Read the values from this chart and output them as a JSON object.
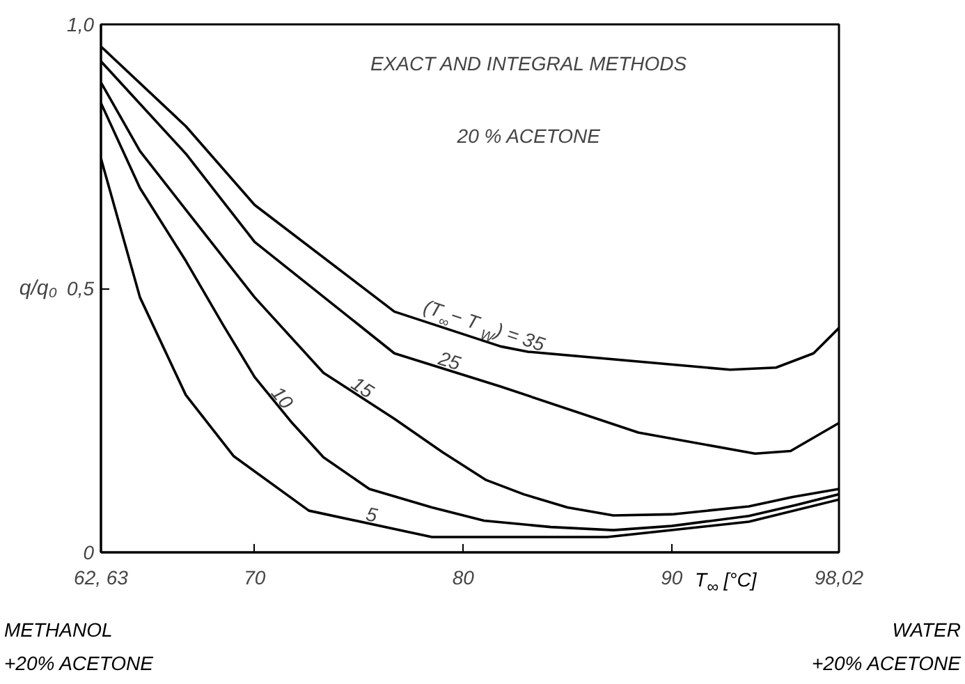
{
  "chart_data": {
    "type": "line",
    "title": "EXACT AND INTEGRAL METHODS",
    "subtitle": "20 % ACETONE",
    "ylabel": "q/q₀",
    "xlabel": "T$_{∞}$ [°C]",
    "xlim": [
      62.63,
      98.02
    ],
    "xticks": [
      {
        "value": 62.63,
        "label": "62, 63"
      },
      70,
      80,
      90,
      {
        "value": 98.02,
        "label": "98,02"
      }
    ],
    "ylim": [
      0,
      1
    ],
    "yticks": [
      0,
      {
        "value": 0.5,
        "label": "0,5"
      },
      {
        "value": 1,
        "label": "1,0"
      }
    ],
    "grid": false,
    "marker": "none",
    "line_style": "solid",
    "annotations": [
      "METHANOL\n+20% ACETONE",
      "WATER\n+20% ACETONE"
    ],
    "series": [
      {
        "name": "(T$_{∞}$ − T$_{W}$) = 35",
        "color": "#000000",
        "x": [
          62.63,
          66.7,
          70.0,
          76.7,
          81.8,
          83.1,
          92.8,
          95.0,
          96.8,
          98.02
        ],
        "values": [
          0.958,
          0.807,
          0.658,
          0.456,
          0.39,
          0.38,
          0.346,
          0.35,
          0.377,
          0.425
        ]
      },
      {
        "name": "25",
        "color": "#000000",
        "x": [
          62.63,
          66.7,
          70.0,
          76.7,
          81.8,
          88.4,
          94.0,
          95.7,
          98.02
        ],
        "values": [
          0.93,
          0.755,
          0.588,
          0.377,
          0.314,
          0.227,
          0.187,
          0.192,
          0.245
        ]
      },
      {
        "name": "15",
        "color": "#000000",
        "x": [
          62.63,
          64.5,
          66.7,
          70.0,
          73.3,
          76.7,
          79.0,
          81.1,
          82.9,
          85.0,
          87.2,
          90.0,
          93.7,
          95.8,
          98.02
        ],
        "values": [
          0.89,
          0.76,
          0.649,
          0.483,
          0.34,
          0.253,
          0.19,
          0.137,
          0.11,
          0.085,
          0.07,
          0.072,
          0.087,
          0.105,
          0.12
        ]
      },
      {
        "name": "10",
        "color": "#000000",
        "x": [
          62.63,
          64.5,
          66.7,
          68.5,
          70.0,
          71.8,
          73.3,
          75.5,
          78.5,
          81.0,
          84.2,
          87.2,
          90.0,
          93.7,
          96.0,
          98.02
        ],
        "values": [
          0.851,
          0.69,
          0.552,
          0.43,
          0.332,
          0.245,
          0.18,
          0.12,
          0.085,
          0.06,
          0.048,
          0.042,
          0.05,
          0.069,
          0.09,
          0.11
        ]
      },
      {
        "name": "5",
        "color": "#000000",
        "x": [
          62.63,
          64.5,
          66.7,
          69.0,
          72.6,
          78.5,
          86.9,
          93.7,
          98.02
        ],
        "values": [
          0.746,
          0.483,
          0.298,
          0.182,
          0.079,
          0.029,
          0.029,
          0.058,
          0.1
        ]
      }
    ]
  }
}
